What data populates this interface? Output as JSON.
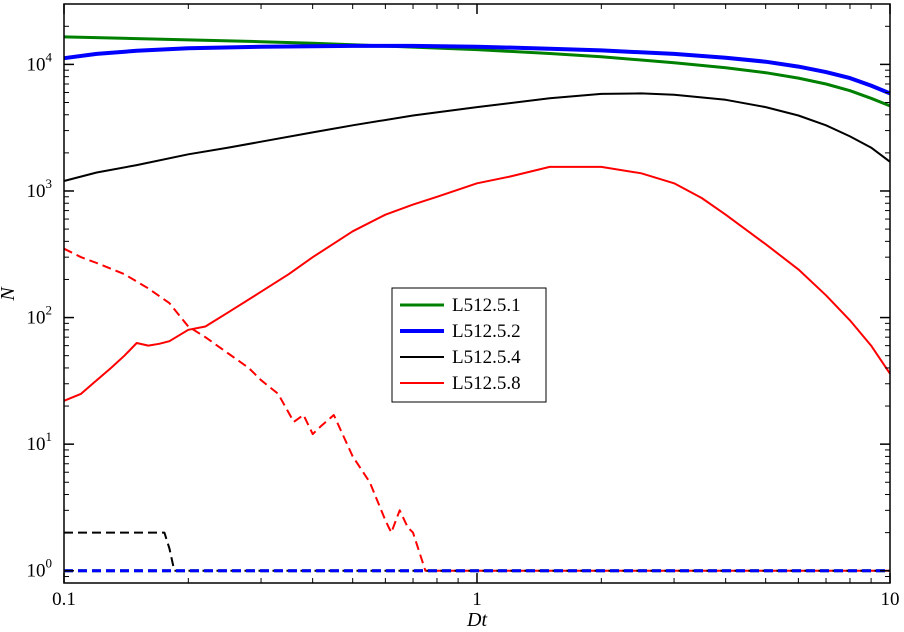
{
  "chart_data": {
    "type": "line",
    "title": "",
    "xlabel": "Dt",
    "ylabel": "N",
    "xscale": "log",
    "yscale": "log",
    "xlim": [
      0.1,
      10
    ],
    "ylim": [
      0.8,
      30000
    ],
    "x_ticks": [
      {
        "value": 0.1,
        "label": "0.1"
      },
      {
        "value": 1,
        "label": "1"
      },
      {
        "value": 10,
        "label": "10"
      }
    ],
    "y_ticks": [
      {
        "value": 1,
        "base": "10",
        "exp": "0"
      },
      {
        "value": 10,
        "base": "10",
        "exp": "1"
      },
      {
        "value": 100,
        "base": "10",
        "exp": "2"
      },
      {
        "value": 1000,
        "base": "10",
        "exp": "3"
      },
      {
        "value": 10000,
        "base": "10",
        "exp": "4"
      }
    ],
    "grid": false,
    "legend_position": "center-left",
    "series": [
      {
        "name": "L512.5.1",
        "color": "#008000",
        "style": "solid",
        "width": 3,
        "x": [
          0.1,
          0.15,
          0.2,
          0.3,
          0.4,
          0.5,
          0.7,
          1.0,
          1.5,
          2.0,
          3.0,
          4.0,
          5.0,
          6.0,
          7.0,
          8.0,
          9.0,
          10.0
        ],
        "y": [
          16500,
          16000,
          15600,
          15100,
          14700,
          14300,
          13700,
          13100,
          12200,
          11500,
          10300,
          9400,
          8600,
          7800,
          7000,
          6200,
          5400,
          4700
        ]
      },
      {
        "name": "L512.5.2",
        "color": "#0000ff",
        "style": "solid",
        "width": 4,
        "x": [
          0.1,
          0.12,
          0.15,
          0.2,
          0.3,
          0.4,
          0.5,
          0.7,
          1.0,
          1.5,
          2.0,
          3.0,
          4.0,
          5.0,
          6.0,
          7.0,
          8.0,
          9.0,
          10.0
        ],
        "y": [
          11200,
          12100,
          12800,
          13400,
          13800,
          13900,
          14000,
          14000,
          13800,
          13300,
          12900,
          12100,
          11300,
          10500,
          9600,
          8700,
          7800,
          6800,
          5900
        ]
      },
      {
        "name": "L512.5.4",
        "color": "#000000",
        "style": "solid",
        "width": 2,
        "x": [
          0.1,
          0.12,
          0.15,
          0.2,
          0.25,
          0.3,
          0.4,
          0.5,
          0.7,
          1.0,
          1.5,
          2.0,
          2.5,
          3.0,
          4.0,
          5.0,
          6.0,
          7.0,
          8.0,
          9.0,
          10.0
        ],
        "y": [
          1200,
          1400,
          1600,
          1950,
          2200,
          2450,
          2900,
          3300,
          3950,
          4600,
          5400,
          5850,
          5900,
          5750,
          5250,
          4600,
          3950,
          3300,
          2700,
          2200,
          1700
        ]
      },
      {
        "name": "L512.5.8",
        "color": "#ff0000",
        "style": "solid",
        "width": 2,
        "x": [
          0.1,
          0.11,
          0.12,
          0.13,
          0.14,
          0.15,
          0.16,
          0.17,
          0.18,
          0.2,
          0.22,
          0.25,
          0.3,
          0.35,
          0.4,
          0.5,
          0.6,
          0.7,
          0.8,
          1.0,
          1.2,
          1.5,
          2.0,
          2.5,
          3.0,
          3.5,
          4.0,
          5.0,
          6.0,
          7.0,
          8.0,
          9.0,
          10.0
        ],
        "y": [
          22,
          25,
          32,
          40,
          50,
          63,
          60,
          62,
          65,
          80,
          85,
          110,
          160,
          220,
          300,
          480,
          650,
          780,
          900,
          1150,
          1300,
          1550,
          1550,
          1380,
          1150,
          880,
          650,
          380,
          240,
          150,
          95,
          60,
          36
        ]
      },
      {
        "name": "",
        "color": "#ff0000",
        "style": "dashed",
        "width": 2,
        "x": [
          0.1,
          0.11,
          0.12,
          0.14,
          0.16,
          0.18,
          0.2,
          0.22,
          0.25,
          0.28,
          0.3,
          0.33,
          0.36,
          0.38,
          0.4,
          0.42,
          0.45,
          0.5,
          0.55,
          0.6,
          0.62,
          0.65,
          0.68,
          0.7,
          0.75,
          0.8,
          1.0,
          2.0,
          5.0,
          10.0
        ],
        "y": [
          350,
          300,
          270,
          220,
          170,
          130,
          85,
          70,
          52,
          40,
          32,
          25,
          15,
          17,
          12,
          14,
          17,
          8,
          5,
          2.5,
          2,
          3,
          2.2,
          2,
          1,
          1,
          1,
          1,
          1,
          1
        ]
      },
      {
        "name": "",
        "color": "#000000",
        "style": "dashed",
        "width": 2,
        "x": [
          0.1,
          0.175,
          0.18,
          0.185,
          1.0,
          10.0
        ],
        "y": [
          2,
          2,
          1.5,
          1,
          1,
          1
        ]
      },
      {
        "name": "",
        "color": "#008000",
        "style": "dashed",
        "width": 3,
        "x": [
          0.1,
          10.0
        ],
        "y": [
          1,
          1
        ]
      },
      {
        "name": "",
        "color": "#0000ff",
        "style": "dashed",
        "width": 3,
        "x": [
          0.1,
          10.0
        ],
        "y": [
          1,
          1
        ]
      }
    ]
  }
}
